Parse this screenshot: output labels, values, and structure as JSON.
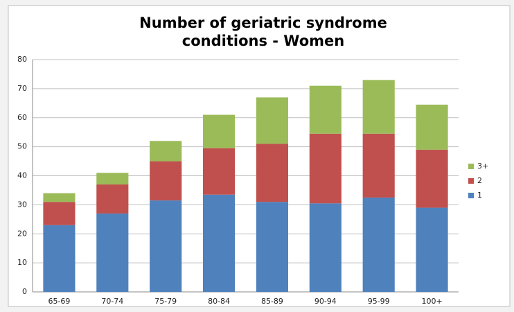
{
  "chart_data": {
    "type": "stacked_bar",
    "title": [
      "Number of geriatric syndrome",
      "conditions - Women"
    ],
    "categories": [
      "65-69",
      "70-74",
      "75-79",
      "80-84",
      "85-89",
      "90-94",
      "95-99",
      "100+"
    ],
    "series": [
      {
        "name": "1",
        "color": "#4f81bd",
        "values": [
          23,
          27,
          31.5,
          33.5,
          31,
          30.5,
          32.5,
          29
        ]
      },
      {
        "name": "2",
        "color": "#c0504d",
        "values": [
          8,
          10,
          13.5,
          16,
          20,
          24,
          22,
          20
        ]
      },
      {
        "name": "3+",
        "color": "#9bbb59",
        "values": [
          3,
          4,
          7,
          11.5,
          16,
          16.5,
          18.5,
          15.5
        ]
      }
    ],
    "ylim": [
      0,
      80
    ],
    "yticks": [
      0,
      10,
      20,
      30,
      40,
      50,
      60,
      70,
      80
    ],
    "grid": true,
    "legend": "right"
  }
}
